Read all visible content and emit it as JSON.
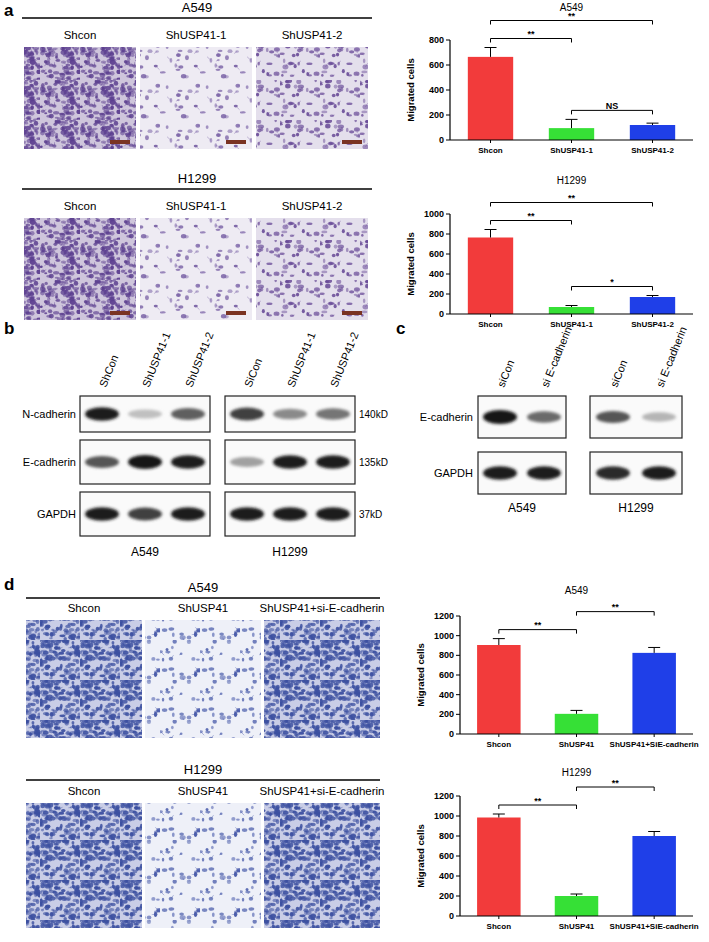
{
  "chart_data": [
    {
      "type": "bar",
      "title": "A549",
      "ylabel": "Migrated cells",
      "categories": [
        "Shcon",
        "ShUSP41-1",
        "ShUSP41-2"
      ],
      "values": [
        665,
        95,
        120
      ],
      "errors": [
        75,
        70,
        15
      ],
      "colors": [
        "#f23b3b",
        "#36e036",
        "#1f3fe8"
      ],
      "ylim": [
        0,
        800
      ],
      "yticks": [
        0,
        200,
        400,
        600,
        800
      ],
      "comparisons": [
        {
          "between": [
            "ShUSP41-1",
            "ShUSP41-2"
          ],
          "label": "NS"
        },
        {
          "between": [
            "Shcon",
            "ShUSP41-1"
          ],
          "label": "**"
        },
        {
          "between": [
            "Shcon",
            "ShUSP41-2"
          ],
          "label": "**"
        }
      ]
    },
    {
      "type": "bar",
      "title": "H1299",
      "ylabel": "Migrated cells",
      "categories": [
        "Shcon",
        "ShUSP41-1",
        "ShUSP41-2"
      ],
      "values": [
        765,
        70,
        170
      ],
      "errors": [
        80,
        15,
        15
      ],
      "colors": [
        "#f23b3b",
        "#36e036",
        "#1f3fe8"
      ],
      "ylim": [
        0,
        1000
      ],
      "yticks": [
        0,
        200,
        400,
        600,
        800,
        1000
      ],
      "comparisons": [
        {
          "between": [
            "ShUSP41-1",
            "ShUSP41-2"
          ],
          "label": "*"
        },
        {
          "between": [
            "Shcon",
            "ShUSP41-1"
          ],
          "label": "**"
        },
        {
          "between": [
            "Shcon",
            "ShUSP41-2"
          ],
          "label": "**"
        }
      ]
    },
    {
      "type": "bar",
      "title": "A549",
      "ylabel": "Migrated cells",
      "categories": [
        "Shcon",
        "ShUSP41",
        "ShUSP41+SiE-cadherin"
      ],
      "values": [
        905,
        205,
        825
      ],
      "errors": [
        65,
        35,
        55
      ],
      "colors": [
        "#f23b3b",
        "#36e036",
        "#1f3fe8"
      ],
      "ylim": [
        0,
        1200
      ],
      "yticks": [
        0,
        200,
        400,
        600,
        800,
        1000,
        1200
      ],
      "comparisons": [
        {
          "between": [
            "Shcon",
            "ShUSP41"
          ],
          "label": "**"
        },
        {
          "between": [
            "ShUSP41",
            "ShUSP41+SiE-cadherin"
          ],
          "label": "**"
        }
      ]
    },
    {
      "type": "bar",
      "title": "H1299",
      "ylabel": "Migrated cells",
      "categories": [
        "Shcon",
        "ShUSP41",
        "ShUSP41+SiE-cadherin"
      ],
      "values": [
        985,
        200,
        800
      ],
      "errors": [
        35,
        20,
        45
      ],
      "colors": [
        "#f23b3b",
        "#36e036",
        "#1f3fe8"
      ],
      "ylim": [
        0,
        1200
      ],
      "yticks": [
        0,
        200,
        400,
        600,
        800,
        1000,
        1200
      ],
      "comparisons": [
        {
          "between": [
            "Shcon",
            "ShUSP41"
          ],
          "label": "**"
        },
        {
          "between": [
            "ShUSP41",
            "ShUSP41+SiE-cadherin"
          ],
          "label": "**"
        }
      ]
    }
  ],
  "figure": {
    "panel_a": {
      "label": "a",
      "groups": [
        {
          "title": "A549",
          "image_labels": [
            "Shcon",
            "ShUSP41-1",
            "ShUSP41-2"
          ]
        },
        {
          "title": "H1299",
          "image_labels": [
            "Shcon",
            "ShUSP41-1",
            "ShUSP41-2"
          ]
        }
      ]
    },
    "panel_b": {
      "label": "b",
      "blots": [
        {
          "cell_line": "A549",
          "lanes": [
            "ShCon",
            "ShUSP41-1",
            "ShUSP41-2"
          ]
        },
        {
          "cell_line": "H1299",
          "lanes": [
            "SiCon",
            "ShUSP41-1",
            "ShUSP41-2"
          ]
        }
      ],
      "rows": [
        "N-cadherin",
        "E-cadherin",
        "GAPDH"
      ],
      "sizes": [
        "140kD",
        "135kD",
        "37kD"
      ]
    },
    "panel_c": {
      "label": "c",
      "blots": [
        {
          "cell_line": "A549",
          "lanes": [
            "siCon",
            "si E-cadherin"
          ]
        },
        {
          "cell_line": "H1299",
          "lanes": [
            "siCon",
            "si E-cadherin"
          ]
        }
      ],
      "rows": [
        "E-cadherin",
        "GAPDH"
      ]
    },
    "panel_d": {
      "label": "d",
      "groups": [
        {
          "title": "A549",
          "image_labels": [
            "Shcon",
            "ShUSP41",
            "ShUSP41+si-E-cadherin"
          ]
        },
        {
          "title": "H1299",
          "image_labels": [
            "Shcon",
            "ShUSP41",
            "ShUSP41+si-E-cadherin"
          ]
        }
      ]
    }
  }
}
